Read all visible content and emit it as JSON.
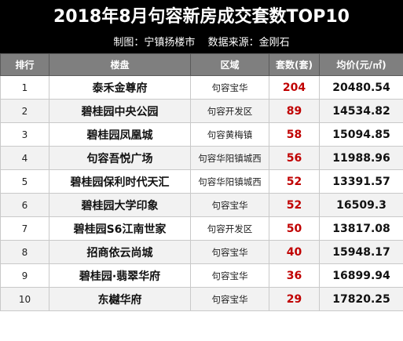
{
  "title": "2018年8月句容新房成交套数TOP10",
  "credit": {
    "maker": "制图：宁镇扬楼市",
    "source": "数据来源：金刚石"
  },
  "columns": [
    "排行",
    "楼盘",
    "区域",
    "套数(套)",
    "均价(元/㎡)"
  ],
  "rows": [
    {
      "rank": "1",
      "estate": "泰禾金尊府",
      "district": "句容宝华",
      "count": "204",
      "price": "20480.54"
    },
    {
      "rank": "2",
      "estate": "碧桂园中央公园",
      "district": "句容开发区",
      "count": "89",
      "price": "14534.82"
    },
    {
      "rank": "3",
      "estate": "碧桂园凤凰城",
      "district": "句容黄梅镇",
      "count": "58",
      "price": "15094.85"
    },
    {
      "rank": "4",
      "estate": "句容吾悦广场",
      "district": "句容华阳镇城西",
      "count": "56",
      "price": "11988.96"
    },
    {
      "rank": "5",
      "estate": "碧桂园保利时代天汇",
      "district": "句容华阳镇城西",
      "count": "52",
      "price": "13391.57"
    },
    {
      "rank": "6",
      "estate": "碧桂园大学印象",
      "district": "句容宝华",
      "count": "52",
      "price": "16509.3"
    },
    {
      "rank": "7",
      "estate": "碧桂园S6江南世家",
      "district": "句容开发区",
      "count": "50",
      "price": "13817.08"
    },
    {
      "rank": "8",
      "estate": "招商依云尚城",
      "district": "句容宝华",
      "count": "40",
      "price": "15948.17"
    },
    {
      "rank": "9",
      "estate": "碧桂园·翡翠华府",
      "district": "句容宝华",
      "count": "36",
      "price": "16899.94"
    },
    {
      "rank": "10",
      "estate": "东樾华府",
      "district": "句容宝华",
      "count": "29",
      "price": "17820.25"
    }
  ],
  "colors": {
    "title_bg": "#000000",
    "header_bg": "#7f7f7f",
    "count_red": "#c00000"
  }
}
